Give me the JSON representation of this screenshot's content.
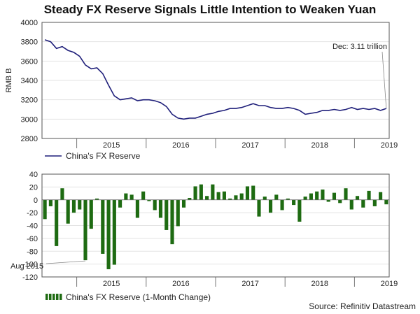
{
  "title": "Steady FX Reserve Signals Little Intention to Weaken Yuan",
  "source": "Source: Refinitiv Datastream",
  "chart_data": [
    {
      "type": "line",
      "ylabel": "RMB B",
      "ylim": [
        2800,
        4000
      ],
      "yticks": [
        "2800",
        "3000",
        "3200",
        "3400",
        "3600",
        "3800",
        "4000"
      ],
      "x_range": [
        "2014-07",
        "2019-12"
      ],
      "x_tick_labels": [
        "2015",
        "2016",
        "2017",
        "2018",
        "2019"
      ],
      "legend": "China's FX Reserve",
      "annotation": "Dec: 3.11 trillion",
      "color": "#1f1f7a",
      "series": [
        {
          "name": "China's FX Reserve",
          "start": "2014-07",
          "values": [
            3820,
            3800,
            3730,
            3750,
            3710,
            3690,
            3650,
            3560,
            3520,
            3530,
            3470,
            3350,
            3240,
            3200,
            3210,
            3220,
            3190,
            3200,
            3200,
            3190,
            3170,
            3130,
            3050,
            3010,
            3000,
            3010,
            3010,
            3030,
            3050,
            3060,
            3080,
            3090,
            3110,
            3110,
            3120,
            3140,
            3160,
            3140,
            3140,
            3120,
            3110,
            3110,
            3120,
            3110,
            3090,
            3050,
            3060,
            3070,
            3090,
            3090,
            3100,
            3090,
            3100,
            3120,
            3100,
            3110,
            3100,
            3110,
            3090,
            3110
          ]
        }
      ]
    },
    {
      "type": "bar",
      "ylim": [
        -120,
        40
      ],
      "yticks": [
        "-120",
        "-100",
        "-80",
        "-60",
        "-40",
        "-20",
        "0",
        "20",
        "40"
      ],
      "x_range": [
        "2014-07",
        "2019-12"
      ],
      "x_tick_labels": [
        "2015",
        "2016",
        "2017",
        "2018",
        "2019"
      ],
      "legend": "China's FX Reserve (1-Month Change)",
      "annotation": "Aug 2015",
      "color": "#1e6b12",
      "series": [
        {
          "name": "China's FX Reserve (1-Month Change)",
          "start": "2014-07",
          "values": [
            -30,
            -10,
            -72,
            18,
            -37,
            -20,
            -15,
            -94,
            -45,
            2,
            -84,
            -108,
            -101,
            -12,
            10,
            8,
            -28,
            13,
            -2,
            -16,
            -28,
            -47,
            -69,
            -41,
            -12,
            3,
            21,
            24,
            6,
            24,
            12,
            13,
            2,
            7,
            10,
            21,
            22,
            -26,
            5,
            -20,
            8,
            -16,
            2,
            -8,
            -34,
            5,
            10,
            13,
            16,
            -3,
            11,
            -5,
            18,
            -15,
            6,
            -12,
            14,
            -10,
            12,
            -7
          ]
        }
      ]
    }
  ]
}
